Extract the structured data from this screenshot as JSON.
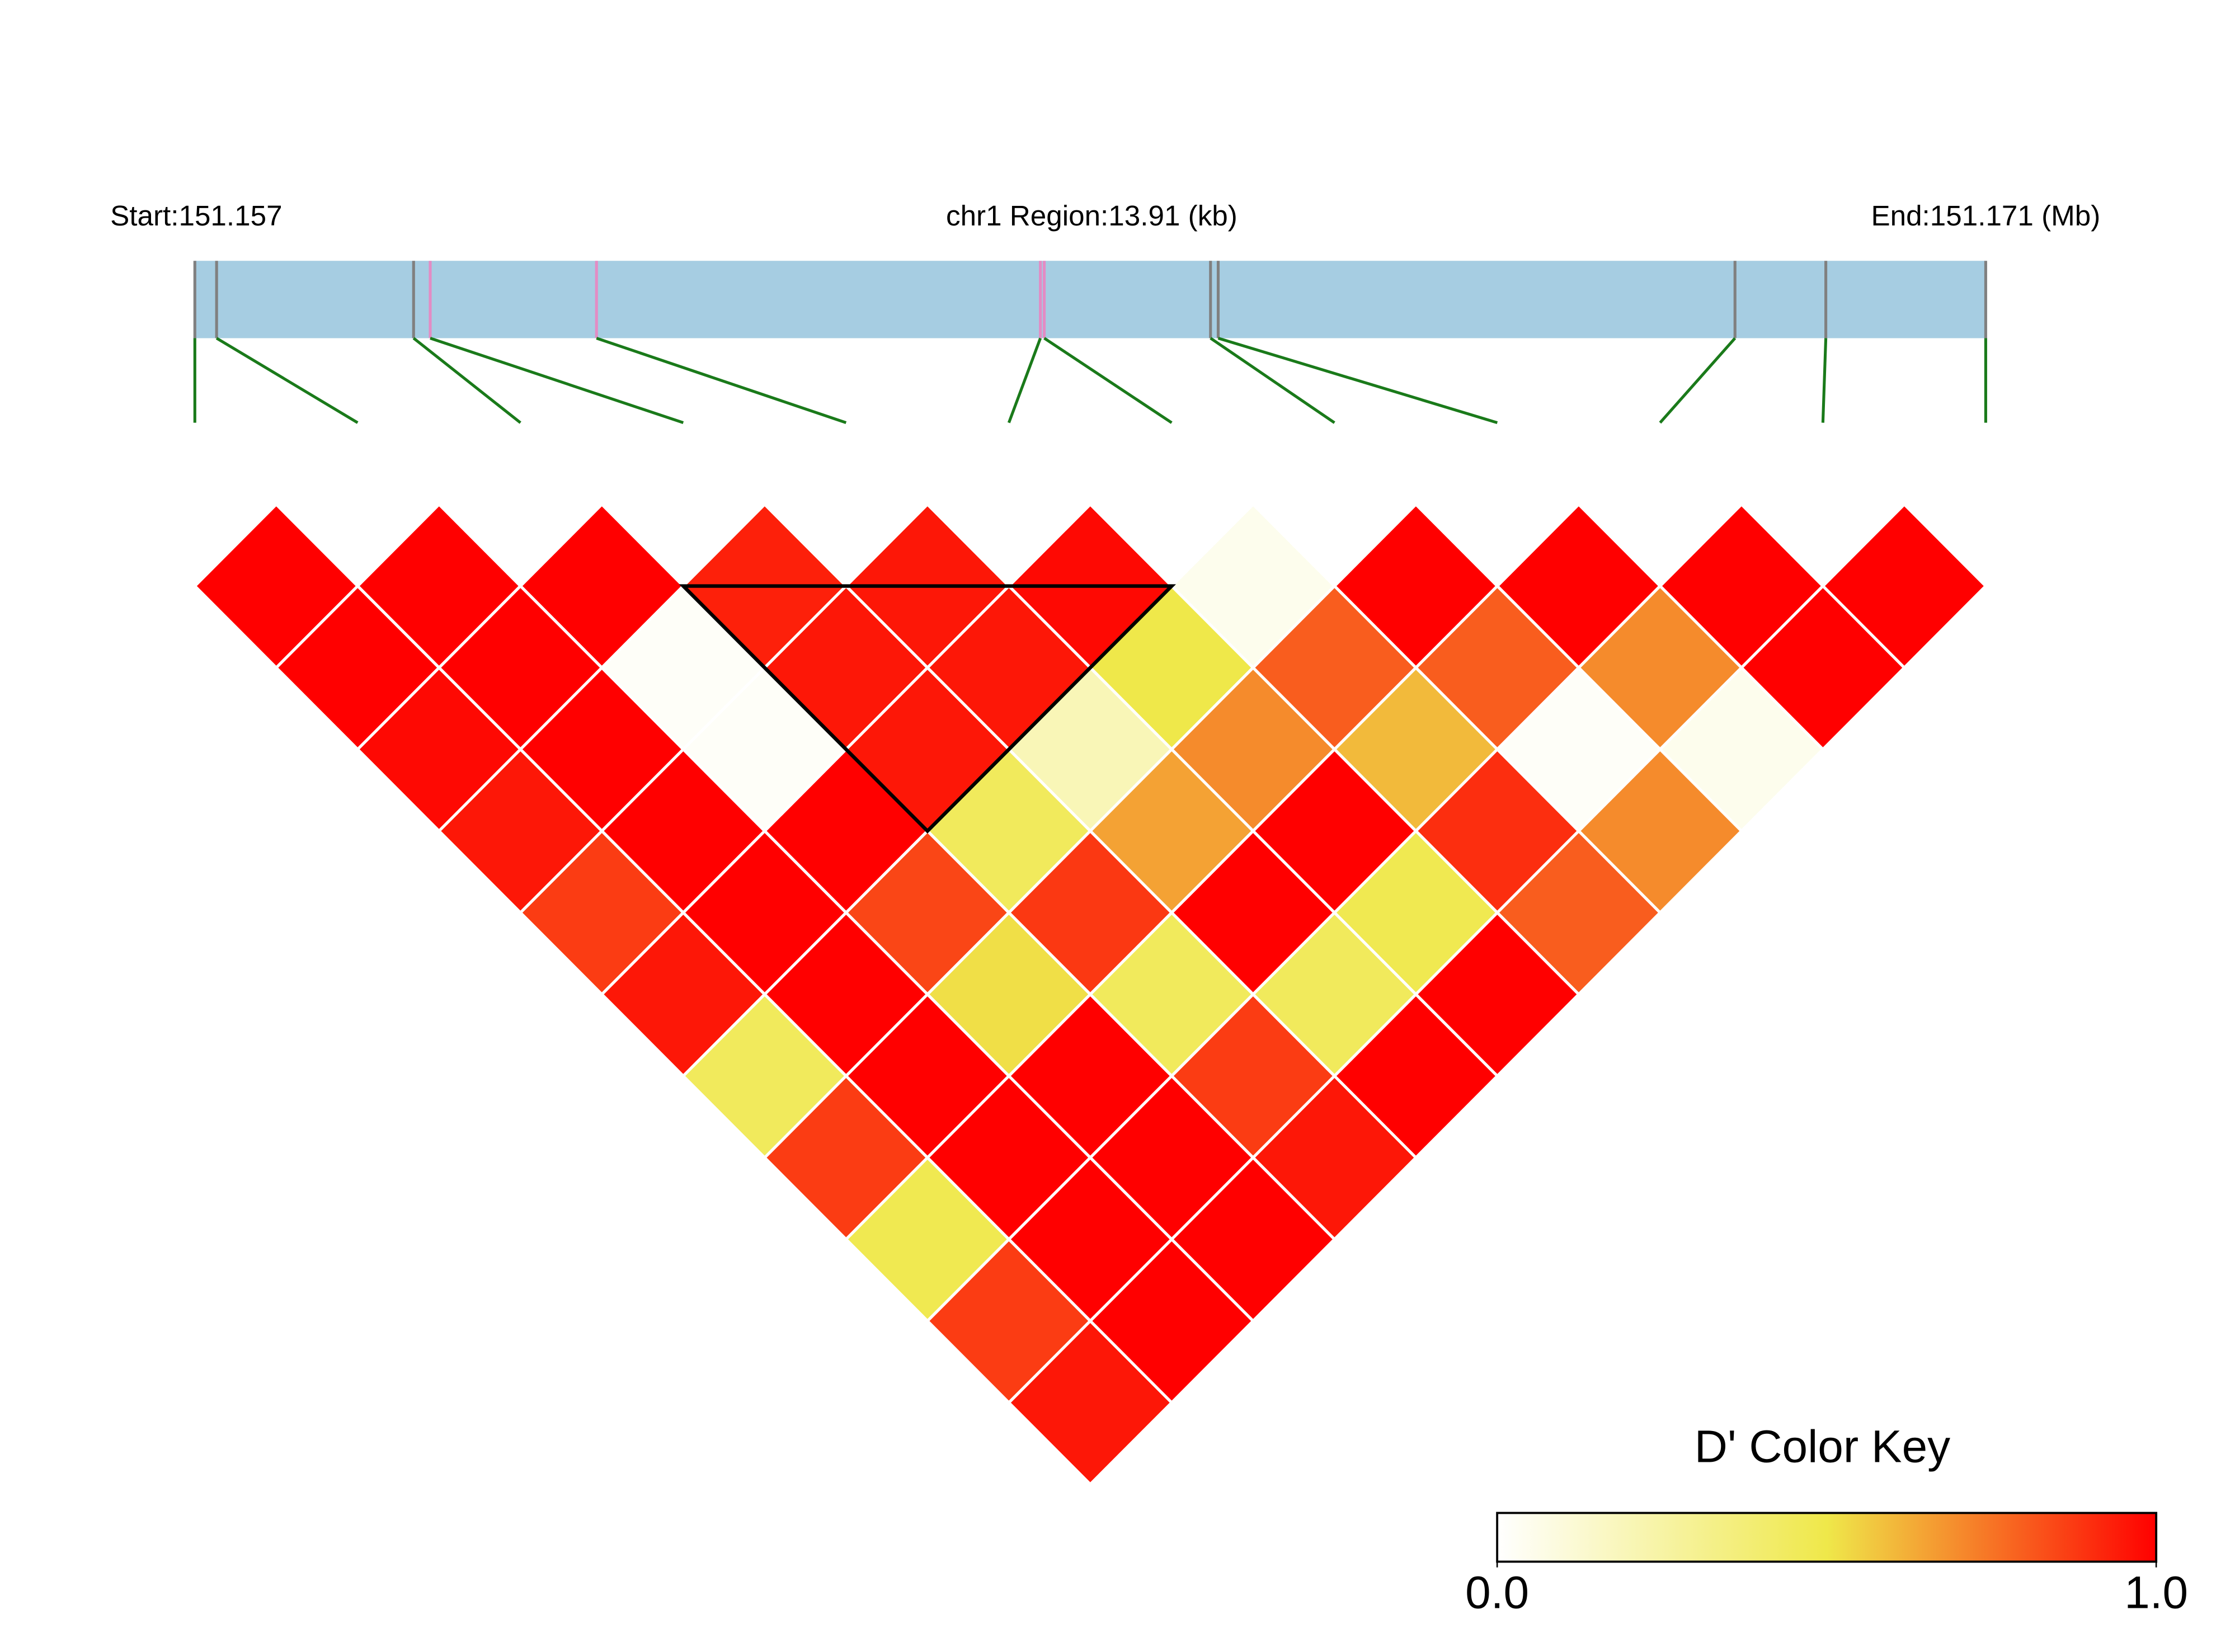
{
  "chart_data": {
    "type": "ld-heatmap",
    "start_label": "Start:151.157",
    "region_label": "chr1 Region:13.91 (kb)",
    "end_label": "End:151.171 (Mb)",
    "xlim": [
      151.157,
      151.171
    ],
    "snp_positions": [
      151.157,
      151.15717,
      151.15871,
      151.15884,
      151.16014,
      151.16361,
      151.16364,
      151.16494,
      151.165,
      151.16904,
      151.16975,
      151.171
    ],
    "snp_colors": [
      "#808080",
      "#808080",
      "#808080",
      "#e38cc4",
      "#e38cc4",
      "#e38cc4",
      "#e38cc4",
      "#808080",
      "#808080",
      "#808080",
      "#808080",
      "#808080"
    ],
    "gene_color": "#a6cde2",
    "link_color": "#1a7a1a",
    "values": [
      [
        1.0,
        1.0,
        1.0,
        0.93,
        0.95,
        0.98,
        0.05,
        1.0,
        1.0,
        1.0,
        1.0
      ],
      [
        1.0,
        1.0,
        0.02,
        0.95,
        0.95,
        0.5,
        0.8,
        0.8,
        0.7,
        1.0
      ],
      [
        0.98,
        1.0,
        0.02,
        0.95,
        0.2,
        0.7,
        0.6,
        0.02,
        0.05
      ],
      [
        0.95,
        1.0,
        1.0,
        0.45,
        0.65,
        1.0,
        0.9,
        0.7
      ],
      [
        0.87,
        1.0,
        0.85,
        0.88,
        1.0,
        0.48,
        0.8
      ],
      [
        0.95,
        1.0,
        0.52,
        0.45,
        0.45,
        1.0
      ],
      [
        0.45,
        1.0,
        1.0,
        0.87,
        1.0
      ],
      [
        0.87,
        1.0,
        1.0,
        0.95
      ],
      [
        0.48,
        1.0,
        1.0
      ],
      [
        0.87,
        1.0
      ],
      [
        0.95
      ]
    ],
    "blocks": [
      [
        3,
        6
      ]
    ],
    "colors": [
      "#ffffff",
      "#efe84a",
      "#ff0000"
    ],
    "key_title": "D' Color Key",
    "key_lim": [
      0,
      1
    ],
    "key_ticks": [
      {
        "value": 0,
        "label": "0.0"
      },
      {
        "value": 1,
        "label": "1.0"
      }
    ]
  }
}
